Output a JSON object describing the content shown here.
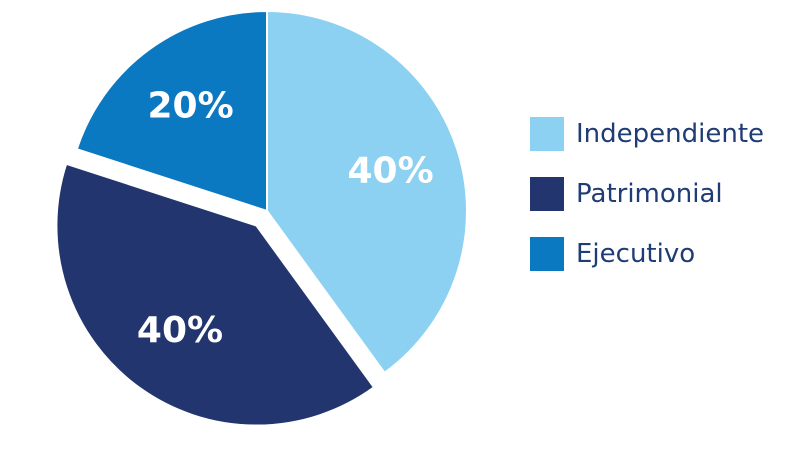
{
  "chart_data": {
    "type": "pie",
    "title": "",
    "slices": [
      {
        "label": "Independiente",
        "value": 40,
        "value_label": "40%",
        "color": "#8dd1f2",
        "exploded": false
      },
      {
        "label": "Patrimonial",
        "value": 40,
        "value_label": "40%",
        "color": "#22356e",
        "exploded": true
      },
      {
        "label": "Ejecutivo",
        "value": 20,
        "value_label": "20%",
        "color": "#0b79c1",
        "exploded": false
      }
    ],
    "legend": {
      "position": "right",
      "entries": [
        "Independiente",
        "Patrimonial",
        "Ejecutivo"
      ]
    },
    "colors": {
      "legend_text": "#1f3c74",
      "slice_label_text": "#ffffff",
      "slice_border": "#ffffff"
    }
  }
}
